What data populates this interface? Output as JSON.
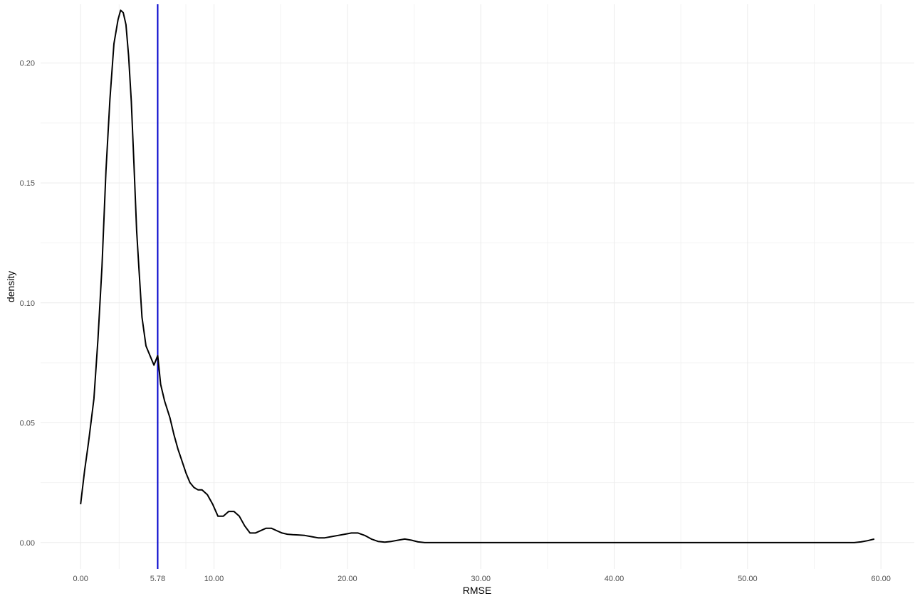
{
  "chart_data": {
    "type": "line",
    "title": "",
    "xlabel": "RMSE",
    "ylabel": "density",
    "xlim": [
      -3,
      62.5
    ],
    "ylim": [
      -0.011,
      0.2245
    ],
    "x_ticks": [
      0,
      5.78,
      10,
      20,
      30,
      40,
      50,
      60
    ],
    "x_tick_labels": [
      "0.00",
      "5.78",
      "10.00",
      "20.00",
      "30.00",
      "40.00",
      "50.00",
      "60.00"
    ],
    "y_ticks": [
      0,
      0.05,
      0.1,
      0.15,
      0.2
    ],
    "y_tick_labels": [
      "0.00",
      "0.05",
      "0.10",
      "0.15",
      "0.20"
    ],
    "grid": true,
    "colors": {
      "line": "#000000",
      "reference_line": "#0000cc",
      "grid": "#ebebeb"
    },
    "reference_line": {
      "axis": "x",
      "value": 5.78
    },
    "series": [
      {
        "x": [
          0.0,
          0.3,
          0.6,
          1.0,
          1.3,
          1.6,
          1.9,
          2.2,
          2.5,
          2.8,
          3.0,
          3.2,
          3.4,
          3.6,
          3.8,
          4.0,
          4.2,
          4.4,
          4.6,
          4.9,
          5.2,
          5.5,
          5.78,
          6.0,
          6.3,
          6.7,
          7.0,
          7.3,
          7.6,
          7.9,
          8.2,
          8.5,
          8.8,
          9.1,
          9.5,
          9.9,
          10.3,
          10.7,
          11.1,
          11.5,
          11.9,
          12.3,
          12.7,
          13.1,
          13.5,
          13.9,
          14.3,
          14.7,
          15.1,
          15.5,
          15.9,
          16.3,
          16.8,
          17.3,
          17.8,
          18.3,
          18.8,
          19.3,
          19.8,
          20.3,
          20.8,
          21.3,
          21.8,
          22.3,
          22.8,
          23.3,
          23.8,
          24.3,
          24.8,
          25.3,
          25.8,
          26.5,
          30.0,
          40.0,
          50.0,
          58.0,
          58.5,
          59.0,
          59.5
        ],
        "y": [
          0.016,
          0.03,
          0.042,
          0.06,
          0.085,
          0.115,
          0.155,
          0.185,
          0.208,
          0.218,
          0.222,
          0.221,
          0.216,
          0.203,
          0.184,
          0.158,
          0.13,
          0.112,
          0.094,
          0.082,
          0.078,
          0.074,
          0.078,
          0.066,
          0.059,
          0.052,
          0.045,
          0.039,
          0.034,
          0.029,
          0.025,
          0.023,
          0.022,
          0.022,
          0.02,
          0.016,
          0.011,
          0.011,
          0.013,
          0.013,
          0.011,
          0.007,
          0.004,
          0.004,
          0.005,
          0.006,
          0.006,
          0.005,
          0.004,
          0.0035,
          0.0033,
          0.0032,
          0.003,
          0.0025,
          0.002,
          0.002,
          0.0025,
          0.003,
          0.0035,
          0.004,
          0.004,
          0.003,
          0.0015,
          0.0005,
          0.0002,
          0.0005,
          0.001,
          0.0015,
          0.001,
          0.0003,
          0.0,
          0.0,
          0.0,
          0.0,
          0.0,
          0.0,
          0.0003,
          0.0008,
          0.0015
        ]
      }
    ]
  }
}
